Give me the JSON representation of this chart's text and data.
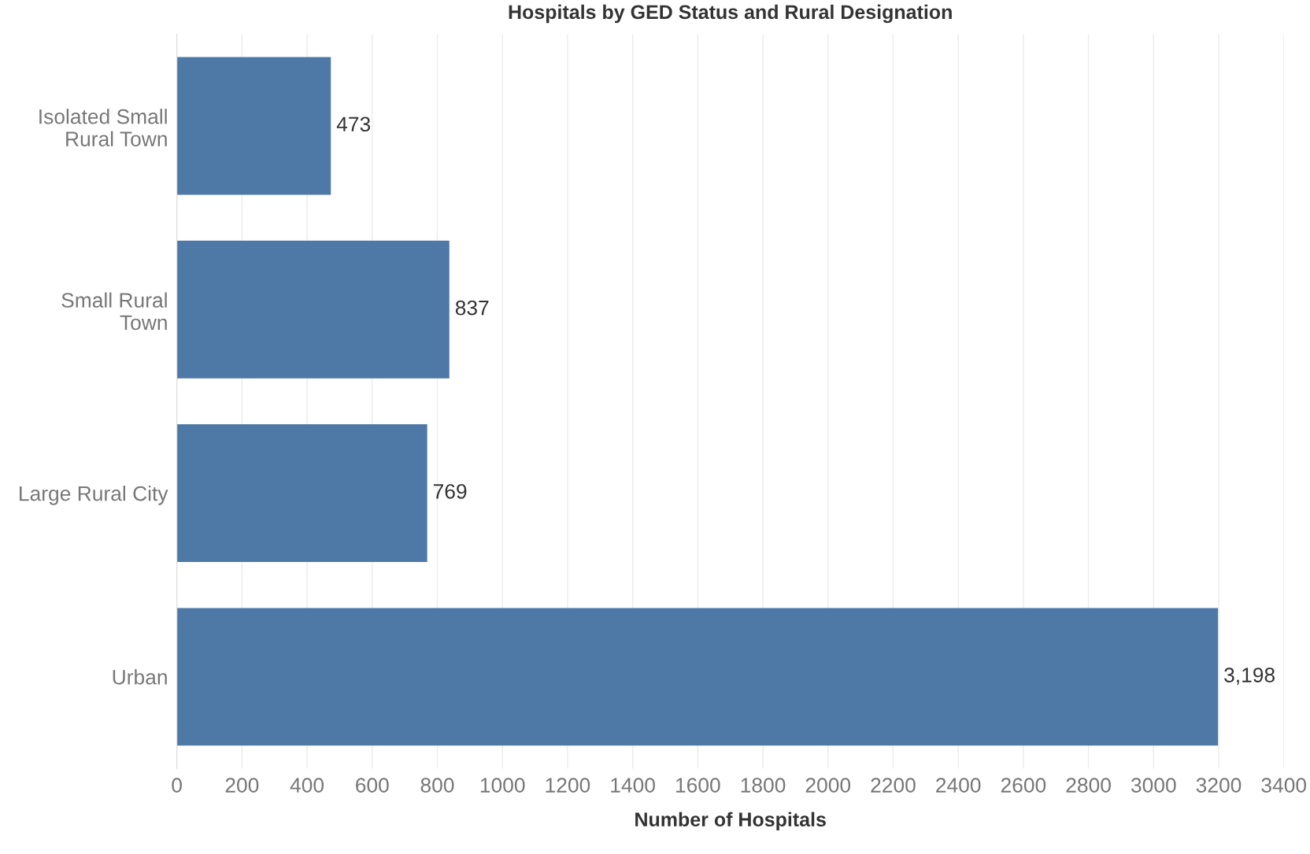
{
  "chart_data": {
    "type": "bar",
    "orientation": "horizontal",
    "title": "Hospitals by GED Status and Rural Designation",
    "xlabel": "Number of Hospitals",
    "categories": [
      "Isolated Small\nRural Town",
      "Small Rural\nTown",
      "Large Rural City",
      "Urban"
    ],
    "values": [
      473,
      837,
      769,
      3198
    ],
    "value_labels": [
      "473",
      "837",
      "769",
      "3,198"
    ],
    "color": "#4e79a7",
    "xlim": [
      0,
      3400
    ],
    "xticks": [
      0,
      200,
      400,
      600,
      800,
      1000,
      1200,
      1400,
      1600,
      1800,
      2000,
      2200,
      2400,
      2600,
      2800,
      3000,
      3200,
      3400
    ],
    "grid": "x"
  }
}
